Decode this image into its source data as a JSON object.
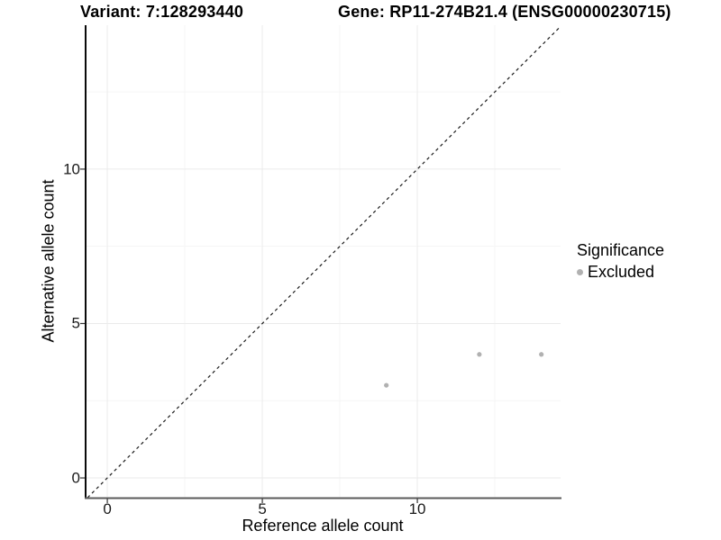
{
  "chart_data": {
    "type": "scatter",
    "title_left": "Variant: 7:128293440",
    "title_right": "Gene: RP11-274B21.4 (ENSG00000230715)",
    "xlabel": "Reference allele count",
    "ylabel": "Alternative allele count",
    "xlim": [
      -0.7,
      14.62
    ],
    "ylim": [
      -0.64,
      14.66
    ],
    "x_ticks": [
      0,
      5,
      10
    ],
    "y_ticks": [
      0,
      5,
      10
    ],
    "x_minor_ticks": [
      2.5,
      7.5,
      12.5
    ],
    "y_minor_ticks": [
      2.5,
      7.5,
      12.5
    ],
    "grid": "on",
    "reference_line": {
      "kind": "identity",
      "label": "y = x",
      "style": "dashed",
      "color": "#1a1a1a"
    },
    "series": [
      {
        "name": "Excluded",
        "color": "#b1b1b1",
        "points": [
          {
            "x": 9,
            "y": 3
          },
          {
            "x": 12,
            "y": 4
          },
          {
            "x": 14,
            "y": 4
          }
        ]
      }
    ],
    "legend": {
      "title": "Significance",
      "position": "right",
      "entries": [
        {
          "label": "Excluded",
          "color": "#b1b1b1"
        }
      ]
    },
    "colors": {
      "background": "#ffffff",
      "major_grid": "#ebebeb",
      "minor_grid": "#f5f5f5",
      "axis_line_y": "#0a0a0a",
      "axis_line_x": "#5a5a5a",
      "tick_mark": "#333333",
      "tick_label": "#1a1a1a",
      "point": "#b1b1b1"
    }
  }
}
